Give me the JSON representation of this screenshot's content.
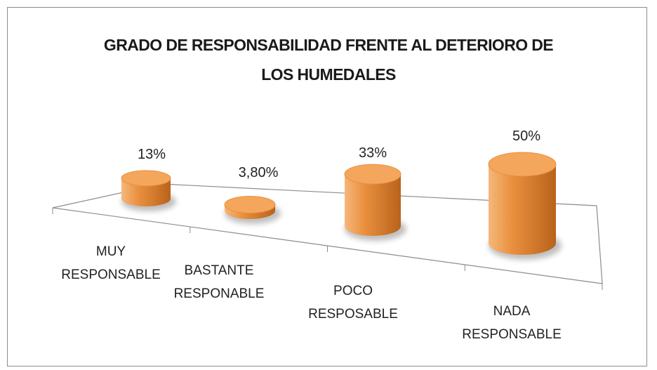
{
  "chart_data": {
    "type": "bar",
    "style": "3d-cylinder",
    "title": "GRADO DE RESPONSABILIDAD FRENTE AL DETERIORO DE LOS HUMEDALES",
    "title_lines": [
      "GRADO DE RESPONSABILIDAD FRENTE AL DETERIORO DE",
      "LOS HUMEDALES"
    ],
    "categories": [
      "MUY RESPONSABLE",
      "BASTANTE RESPONABLE",
      "POCO RESPOSABLE",
      "NADA RESPONSABLE"
    ],
    "category_lines": [
      [
        "MUY",
        "RESPONSABLE"
      ],
      [
        "BASTANTE",
        "RESPONABLE"
      ],
      [
        "POCO",
        "RESPOSABLE"
      ],
      [
        "NADA",
        "RESPONSABLE"
      ]
    ],
    "values": [
      13,
      3.8,
      33,
      50
    ],
    "data_labels": [
      "13%",
      "3,80%",
      "33%",
      "50%"
    ],
    "ylim": [
      0,
      50
    ],
    "grid": false,
    "legend": "none",
    "colors": {
      "bar_light": "#f6b77a",
      "bar_mid": "#e9903f",
      "bar_dark": "#b9621b",
      "bar_top": "#f4a65c",
      "floor_line": "#8c8c8c"
    }
  }
}
